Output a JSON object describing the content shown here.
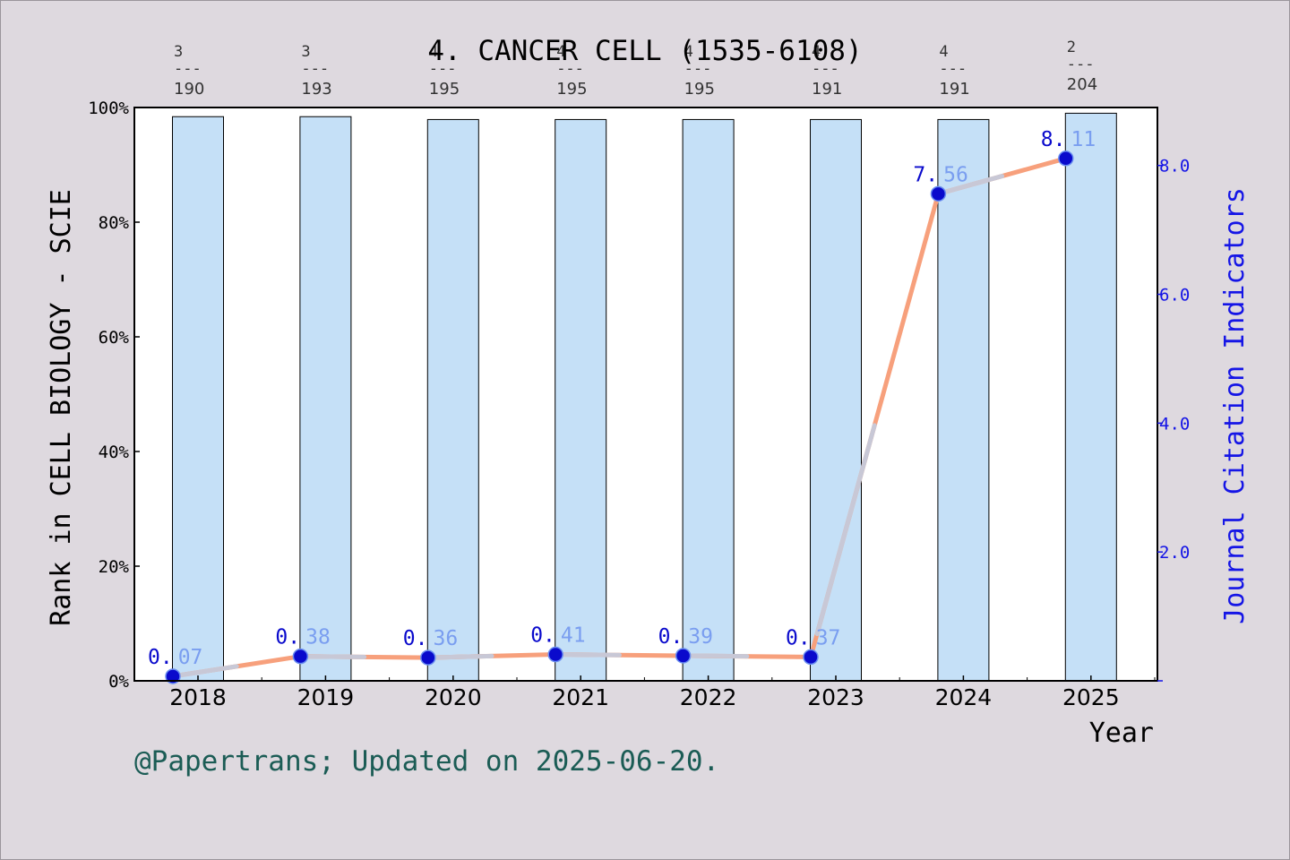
{
  "chart_data": {
    "type": "bar",
    "title": "4. CANCER CELL (1535-6108)",
    "xlabel": "Year",
    "ylabel_left": "Rank in CELL BIOLOGY - SCIE",
    "ylabel_right": "Journal Citation Indicators",
    "categories": [
      "2018",
      "2019",
      "2020",
      "2021",
      "2022",
      "2023",
      "2024",
      "2025"
    ],
    "rank_position": [
      "3",
      "3",
      "4",
      "4",
      "4",
      "4",
      "4",
      "2"
    ],
    "rank_total": [
      "190",
      "193",
      "195",
      "195",
      "195",
      "191",
      "191",
      "204"
    ],
    "rank_separator": "---",
    "series": [
      {
        "name": "Rank percentile",
        "axis": "left",
        "values": [
          98.4,
          98.4,
          97.9,
          97.9,
          97.9,
          97.9,
          97.9,
          99.0
        ]
      },
      {
        "name": "JCI",
        "axis": "right",
        "values": [
          0.07,
          0.38,
          0.36,
          0.41,
          0.39,
          0.37,
          7.56,
          8.11
        ]
      }
    ],
    "point_labels_head": [
      "0.",
      "0.",
      "0.",
      "0.",
      "0.",
      "0.",
      "7.",
      "8."
    ],
    "point_labels_tail": [
      "07",
      "38",
      "36",
      "41",
      "39",
      "37",
      "56",
      "11"
    ],
    "ylim_left": [
      0,
      100
    ],
    "yticks_left": [
      "0%",
      "20%",
      "40%",
      "60%",
      "80%",
      "100%"
    ],
    "ylim_right": [
      0,
      8.9
    ],
    "yticks_right": [
      "2.0",
      "4.0",
      "6.0",
      "8.0"
    ],
    "colors": {
      "bar_fill": "#c5e0f7",
      "line": "#f7a07c",
      "line_highlight": "#c8c8d6",
      "marker": "#0a0acc",
      "label_dark": "#0a0acc",
      "label_light": "#7a9ef0",
      "right_axis": "#1515e6"
    }
  },
  "footer": {
    "credit": "@Papertrans; Updated on 2025-06-20."
  }
}
